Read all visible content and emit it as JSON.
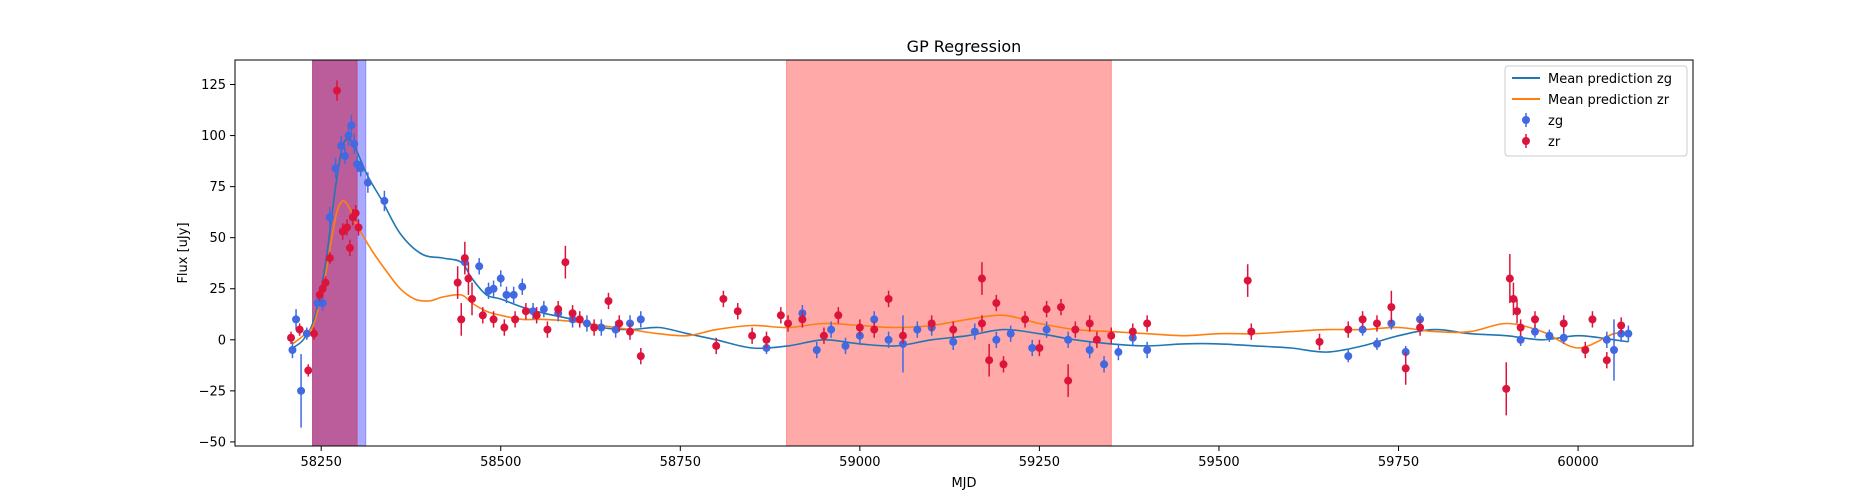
{
  "chart_data": {
    "type": "line",
    "title": "GP Regression",
    "xlabel": "MJD",
    "ylabel": "Flux [uJy]",
    "xlim": [
      58130,
      60160
    ],
    "ylim": [
      -52,
      137
    ],
    "xticks": [
      58250,
      58500,
      58750,
      59000,
      59250,
      59500,
      59750,
      60000
    ],
    "yticks": [
      -50,
      -25,
      0,
      25,
      50,
      75,
      100,
      125
    ],
    "grid": false,
    "legend": {
      "placement": "top-right",
      "entries": [
        "Mean prediction zg",
        "Mean prediction zr",
        "zg",
        "zr"
      ]
    },
    "colors": {
      "zg_line": "#1f77b4",
      "zr_line": "#ff7f0e",
      "zg_points": "#4169e1",
      "zr_points": "#dc143c",
      "band_blue": "#8c8cff",
      "band_purple": "#b8569e",
      "band_red": "#ff9999"
    },
    "shaded_regions": [
      {
        "x0": 58238,
        "x1": 58312,
        "color": "#8c8cff",
        "opacity": 0.75
      },
      {
        "x0": 58238,
        "x1": 58300,
        "color": "#c0508a",
        "opacity": 0.85
      },
      {
        "x0": 58898,
        "x1": 59350,
        "color": "#ff8c8c",
        "opacity": 0.75
      }
    ],
    "series": [
      {
        "name": "Mean prediction zg",
        "kind": "line",
        "x": [
          58210,
          58225,
          58240,
          58255,
          58270,
          58280,
          58290,
          58300,
          58315,
          58335,
          58360,
          58390,
          58420,
          58445,
          58460,
          58480,
          58500,
          58530,
          58560,
          58600,
          58640,
          58680,
          58720,
          58760,
          58800,
          58850,
          58900,
          58950,
          59000,
          59050,
          59100,
          59150,
          59200,
          59250,
          59300,
          59350,
          59400,
          59450,
          59500,
          59550,
          59600,
          59650,
          59700,
          59750,
          59800,
          59850,
          59900,
          59950,
          60000,
          60050,
          60070
        ],
        "y": [
          -4,
          0,
          10,
          35,
          75,
          95,
          98,
          92,
          80,
          68,
          52,
          42,
          40,
          38,
          30,
          22,
          20,
          16,
          13,
          10,
          6,
          5,
          6,
          3,
          0,
          -4,
          -3,
          0,
          -2,
          -3,
          0,
          2,
          5,
          3,
          0,
          -2,
          -3,
          -2,
          -2,
          -3,
          -4,
          -6,
          -3,
          2,
          5,
          3,
          2,
          0,
          2,
          0,
          -1
        ]
      },
      {
        "name": "Mean prediction zr",
        "kind": "line",
        "x": [
          58210,
          58225,
          58240,
          58255,
          58270,
          58280,
          58290,
          58300,
          58320,
          58340,
          58360,
          58380,
          58400,
          58420,
          58445,
          58460,
          58480,
          58500,
          58530,
          58560,
          58600,
          58640,
          58680,
          58720,
          58760,
          58800,
          58850,
          58900,
          58950,
          59000,
          59050,
          59100,
          59150,
          59200,
          59250,
          59300,
          59350,
          59400,
          59450,
          59500,
          59550,
          59600,
          59650,
          59700,
          59750,
          59800,
          59850,
          59900,
          59950,
          60000,
          60050,
          60070
        ],
        "y": [
          -2,
          2,
          8,
          30,
          60,
          68,
          64,
          56,
          44,
          34,
          25,
          20,
          19,
          21,
          22,
          18,
          14,
          12,
          10,
          10,
          9,
          7,
          5,
          3,
          2,
          5,
          7,
          6,
          8,
          7,
          6,
          7,
          10,
          12,
          8,
          5,
          4,
          3,
          2,
          3,
          3,
          4,
          5,
          5,
          6,
          4,
          4,
          8,
          4,
          -4,
          3,
          2
        ]
      },
      {
        "name": "zg",
        "kind": "errorbar",
        "x": [
          58210,
          58215,
          58222,
          58230,
          58245,
          58252,
          58262,
          58270,
          58278,
          58283,
          58288,
          58292,
          58296,
          58300,
          58305,
          58315,
          58338,
          58450,
          58470,
          58483,
          58490,
          58500,
          58508,
          58518,
          58530,
          58545,
          58560,
          58580,
          58600,
          58620,
          58640,
          58660,
          58680,
          58695,
          58870,
          58920,
          58940,
          58960,
          58980,
          59000,
          59020,
          59040,
          59060,
          59080,
          59100,
          59130,
          59160,
          59190,
          59210,
          59240,
          59260,
          59290,
          59320,
          59340,
          59360,
          59380,
          59400,
          59680,
          59700,
          59720,
          59740,
          59760,
          59780,
          59920,
          59940,
          59960,
          59980,
          60040,
          60050,
          60060,
          60070
        ],
        "y": [
          -5,
          10,
          -25,
          3,
          18,
          18,
          60,
          84,
          95,
          90,
          100,
          105,
          96,
          86,
          84,
          77,
          68,
          38,
          36,
          24,
          25,
          30,
          22,
          22,
          26,
          14,
          15,
          13,
          10,
          8,
          6,
          5,
          8,
          10,
          -4,
          13,
          -5,
          5,
          -3,
          2,
          10,
          0,
          -2,
          5,
          6,
          -1,
          4,
          0,
          3,
          -4,
          5,
          0,
          -5,
          -12,
          -6,
          1,
          -5,
          -8,
          5,
          -2,
          8,
          -6,
          10,
          0,
          4,
          2,
          1,
          0,
          -5,
          3,
          3
        ],
        "err": [
          4,
          5,
          18,
          3,
          3,
          4,
          5,
          5,
          5,
          4,
          5,
          5,
          5,
          4,
          4,
          5,
          5,
          5,
          4,
          4,
          4,
          4,
          4,
          4,
          4,
          4,
          4,
          4,
          4,
          4,
          4,
          4,
          4,
          4,
          3,
          4,
          4,
          4,
          4,
          4,
          4,
          4,
          14,
          4,
          4,
          4,
          4,
          4,
          4,
          4,
          4,
          4,
          4,
          4,
          4,
          4,
          4,
          3,
          3,
          3,
          3,
          3,
          3,
          3,
          3,
          3,
          3,
          4,
          15,
          4,
          4
        ]
      },
      {
        "name": "zr",
        "kind": "errorbar",
        "x": [
          58208,
          58220,
          58232,
          58240,
          58248,
          58252,
          58256,
          58262,
          58272,
          58280,
          58286,
          58290,
          58294,
          58298,
          58302,
          58440,
          58445,
          58450,
          58455,
          58460,
          58475,
          58490,
          58505,
          58520,
          58535,
          58550,
          58565,
          58580,
          58590,
          58600,
          58610,
          58630,
          58650,
          58665,
          58680,
          58695,
          58800,
          58810,
          58830,
          58850,
          58870,
          58890,
          58900,
          58920,
          58950,
          58970,
          59000,
          59020,
          59040,
          59060,
          59100,
          59130,
          59170,
          59170,
          59180,
          59190,
          59200,
          59230,
          59250,
          59260,
          59280,
          59290,
          59300,
          59320,
          59330,
          59350,
          59380,
          59400,
          59540,
          59545,
          59640,
          59680,
          59700,
          59720,
          59740,
          59760,
          59780,
          59900,
          59905,
          59910,
          59915,
          59920,
          59940,
          59980,
          60010,
          60020,
          60040,
          60060
        ],
        "y": [
          1,
          5,
          -15,
          3,
          22,
          25,
          28,
          40,
          122,
          53,
          55,
          45,
          60,
          62,
          55,
          28,
          10,
          40,
          30,
          20,
          12,
          10,
          6,
          10,
          14,
          12,
          5,
          15,
          38,
          13,
          10,
          6,
          19,
          8,
          4,
          -8,
          -3,
          20,
          14,
          2,
          0,
          12,
          8,
          10,
          2,
          12,
          6,
          5,
          20,
          2,
          8,
          5,
          30,
          8,
          -10,
          18,
          -12,
          10,
          -4,
          15,
          16,
          -20,
          5,
          8,
          0,
          2,
          4,
          8,
          29,
          4,
          -1,
          5,
          10,
          8,
          16,
          -14,
          6,
          -24,
          30,
          20,
          14,
          6,
          10,
          8,
          -5,
          10,
          -10,
          7
        ],
        "err": [
          3,
          3,
          3,
          3,
          3,
          3,
          3,
          3,
          5,
          4,
          4,
          4,
          4,
          4,
          4,
          8,
          8,
          8,
          8,
          8,
          4,
          4,
          4,
          4,
          4,
          4,
          4,
          4,
          8,
          4,
          4,
          4,
          4,
          4,
          4,
          4,
          4,
          4,
          4,
          4,
          4,
          4,
          4,
          4,
          4,
          4,
          4,
          4,
          4,
          4,
          4,
          4,
          8,
          4,
          8,
          4,
          4,
          4,
          4,
          4,
          4,
          8,
          4,
          4,
          4,
          4,
          4,
          4,
          8,
          4,
          4,
          4,
          4,
          4,
          8,
          8,
          4,
          13,
          12,
          8,
          6,
          4,
          4,
          4,
          4,
          4,
          4,
          4
        ]
      }
    ]
  }
}
